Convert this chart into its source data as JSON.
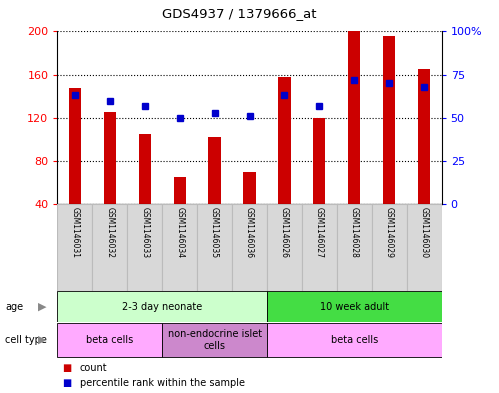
{
  "title": "GDS4937 / 1379666_at",
  "samples": [
    "GSM1146031",
    "GSM1146032",
    "GSM1146033",
    "GSM1146034",
    "GSM1146035",
    "GSM1146036",
    "GSM1146026",
    "GSM1146027",
    "GSM1146028",
    "GSM1146029",
    "GSM1146030"
  ],
  "counts": [
    148,
    125,
    105,
    65,
    102,
    70,
    158,
    120,
    200,
    196,
    165
  ],
  "percentiles": [
    63,
    60,
    57,
    50,
    53,
    51,
    63,
    57,
    72,
    70,
    68
  ],
  "ylim_left": [
    40,
    200
  ],
  "ylim_right": [
    0,
    100
  ],
  "yticks_left": [
    40,
    80,
    120,
    160,
    200
  ],
  "yticks_right": [
    0,
    25,
    50,
    75,
    100
  ],
  "ytick_labels_right": [
    "0",
    "25",
    "50",
    "75",
    "100%"
  ],
  "bar_color": "#cc0000",
  "dot_color": "#0000cc",
  "background_color": "#ffffff",
  "age_groups": [
    {
      "label": "2-3 day neonate",
      "start": 0,
      "end": 6,
      "color": "#ccffcc"
    },
    {
      "label": "10 week adult",
      "start": 6,
      "end": 11,
      "color": "#44dd44"
    }
  ],
  "cell_type_groups": [
    {
      "label": "beta cells",
      "start": 0,
      "end": 3,
      "color": "#ffaaff"
    },
    {
      "label": "non-endocrine islet\ncells",
      "start": 3,
      "end": 6,
      "color": "#cc88cc"
    },
    {
      "label": "beta cells",
      "start": 6,
      "end": 11,
      "color": "#ffaaff"
    }
  ]
}
